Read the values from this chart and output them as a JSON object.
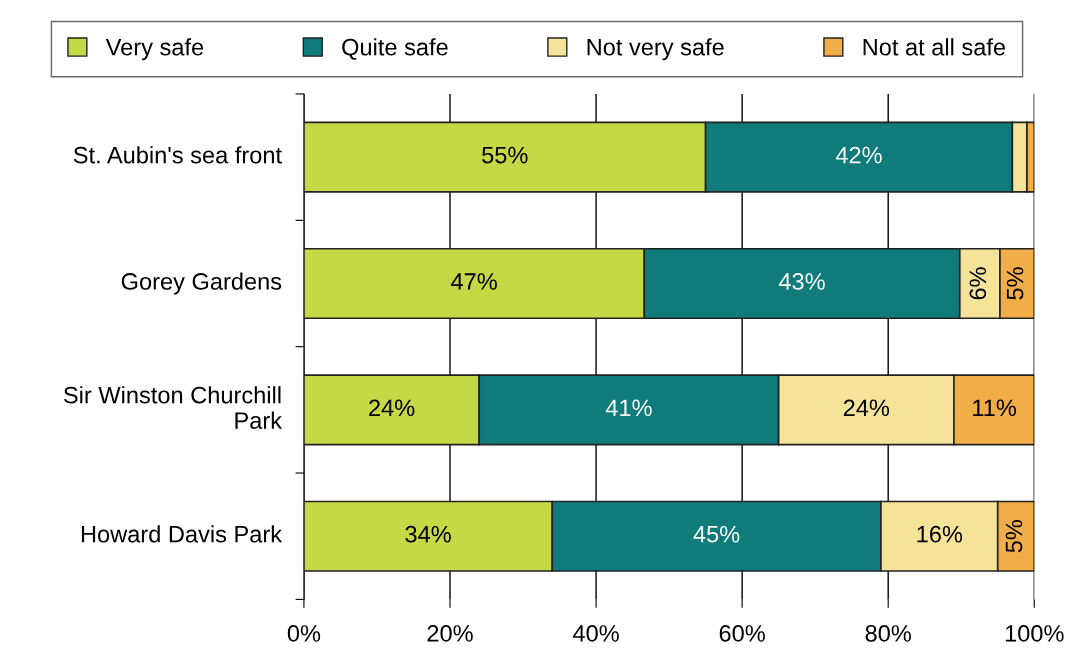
{
  "chart_data": {
    "type": "bar",
    "orientation": "horizontal",
    "stacked": true,
    "categories": [
      "St. Aubin's sea front",
      "Gorey Gardens",
      "Sir Winston Churchill\nPark",
      "Howard Davis Park"
    ],
    "series": [
      {
        "name": "Very safe",
        "color": "#c5d845",
        "values": [
          55,
          46.6,
          24,
          34
        ],
        "value_labels": [
          "55%",
          "47%",
          "24%",
          "34%"
        ]
      },
      {
        "name": "Quite safe",
        "color": "#0f7b7b",
        "values": [
          42,
          43.2,
          41,
          45
        ],
        "value_labels": [
          "42%",
          "43%",
          "41%",
          "45%"
        ]
      },
      {
        "name": "Not very safe",
        "color": "#f5e39a",
        "values": [
          2,
          5.5,
          24,
          16
        ],
        "value_labels": [
          null,
          "6%",
          "24%",
          "16%"
        ]
      },
      {
        "name": "Not at all safe",
        "color": "#f0ad48",
        "values": [
          1,
          4.7,
          11,
          5
        ],
        "value_labels": [
          null,
          "5%",
          "11%",
          "5%"
        ]
      }
    ],
    "xlim": [
      0,
      100
    ],
    "xticks": [
      {
        "value": 0,
        "label": "0%"
      },
      {
        "value": 20,
        "label": "20%"
      },
      {
        "value": 40,
        "label": "40%"
      },
      {
        "value": 60,
        "label": "60%"
      },
      {
        "value": 80,
        "label": "80%"
      },
      {
        "value": 100,
        "label": "100%"
      }
    ],
    "grid": "x",
    "legend": "top"
  }
}
